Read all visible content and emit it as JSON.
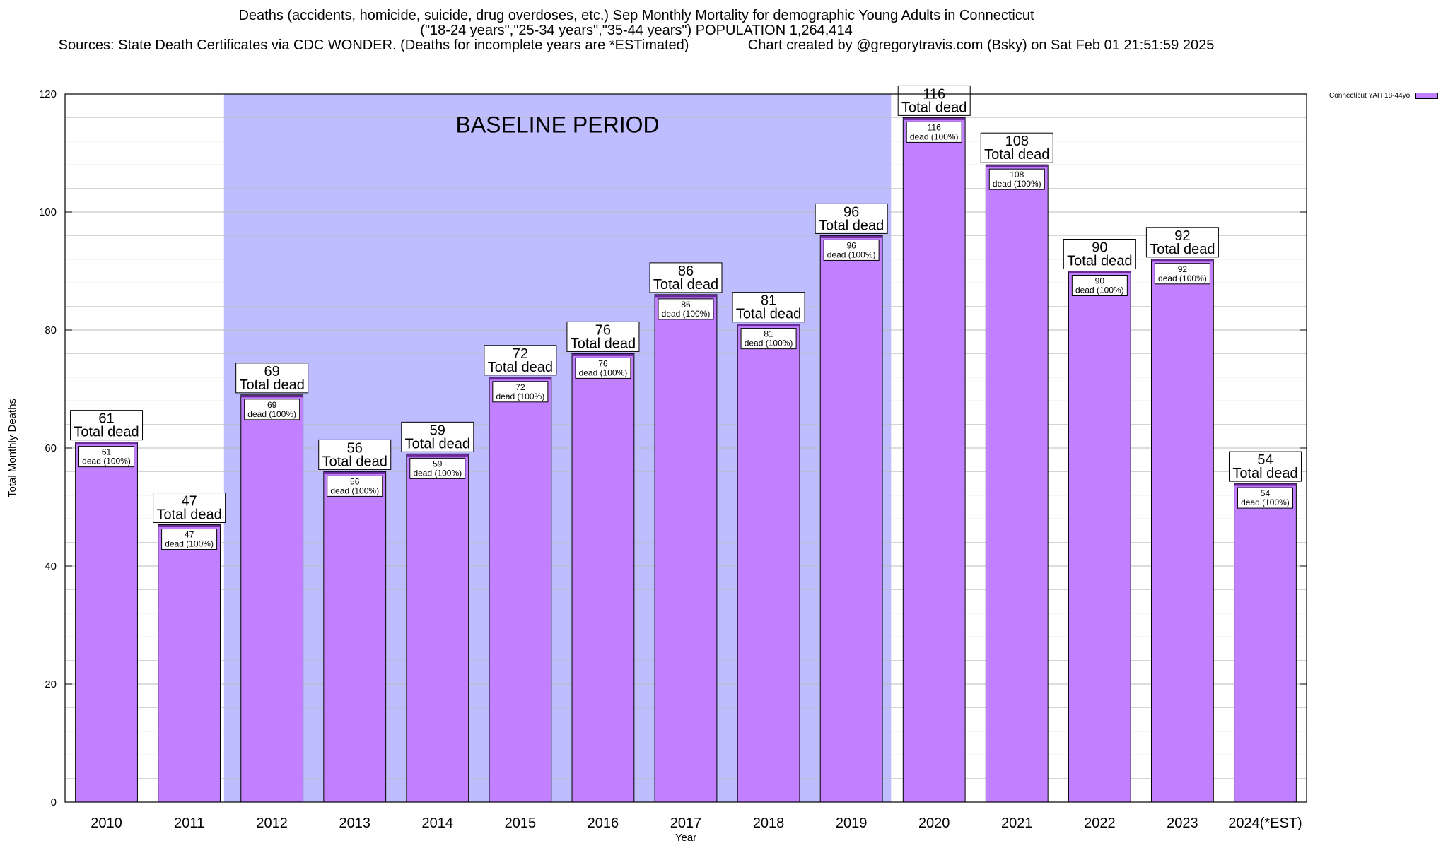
{
  "colors": {
    "bar": "#c080ff",
    "bar_top": "#6a2a9a",
    "baseline_band": "#bdbdff",
    "grid": "#bbbbbb"
  },
  "chart_data": {
    "type": "bar",
    "title_lines": [
      "Deaths (accidents, homicide, suicide, drug overdoses, etc.) Sep Monthly Mortality for demographic Young Adults in Connecticut",
      "(\"18-24 years\",\"25-34 years\",\"35-44 years\") POPULATION 1,264,414",
      "Sources: State Death Certificates via CDC WONDER. (Deaths for incomplete years are *ESTimated)               Chart created by @gregorytravis.com (Bsky) on Sat Feb 01 21:51:59 2025"
    ],
    "xlabel": "Year",
    "ylabel": "Total Monthly Deaths",
    "ylim": [
      0,
      120
    ],
    "y_ticks": [
      0,
      20,
      40,
      60,
      80,
      100,
      120
    ],
    "categories": [
      "2010",
      "2011",
      "2012",
      "2013",
      "2014",
      "2015",
      "2016",
      "2017",
      "2018",
      "2019",
      "2020",
      "2021",
      "2022",
      "2023",
      "2024(*EST)"
    ],
    "series": [
      {
        "name": "Connecticut YAH 18-44yo",
        "values": [
          61,
          47,
          69,
          56,
          59,
          72,
          76,
          86,
          81,
          96,
          116,
          108,
          90,
          92,
          54
        ]
      }
    ],
    "total_label": "Total dead",
    "inner_label": "dead (100%)",
    "baseline_period": {
      "label": "BASELINE PERIOD",
      "from": "2012",
      "to": "2019"
    },
    "grid": true,
    "legend_position": "top-right"
  }
}
